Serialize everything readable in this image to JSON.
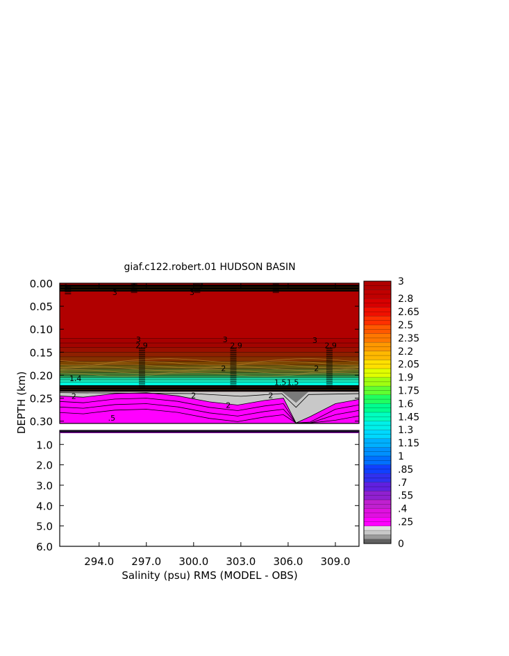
{
  "chart_data": {
    "type": "heatmap",
    "title": "giaf.c122.robert.01 HUDSON BASIN",
    "xlabel": "Salinity (psu) RMS (MODEL - OBS)",
    "ylabel": "DEPTH (km)",
    "x_ticks": [
      "294.0",
      "297.0",
      "300.0",
      "303.0",
      "306.0",
      "309.0"
    ],
    "x_range": [
      291.5,
      310.5
    ],
    "upper_panel": {
      "y_ticks": [
        "0.00",
        "0.05",
        "0.10",
        "0.15",
        "0.20",
        "0.25",
        "0.30"
      ],
      "ylim": [
        0.0,
        0.305
      ]
    },
    "lower_panel": {
      "y_ticks": [
        "1.0",
        "2.0",
        "3.0",
        "4.0",
        "5.0",
        "6.0"
      ],
      "ylim": [
        0.31,
        6.0
      ]
    },
    "colorbar": {
      "labels": [
        "3",
        "2.8",
        "2.65",
        "2.5",
        "2.35",
        "2.2",
        "2.05",
        "1.9",
        "1.75",
        "1.6",
        "1.45",
        "1.3",
        "1.15",
        "1",
        ".85",
        ".7",
        ".55",
        ".4",
        ".25",
        "0"
      ],
      "range": [
        0,
        3
      ]
    },
    "contour_labels": [
      {
        "text": "3",
        "x": 291.9,
        "y": 0.008
      },
      {
        "text": "3",
        "x": 296.2,
        "y": 0.002
      },
      {
        "text": "3",
        "x": 295.0,
        "y": 0.02
      },
      {
        "text": "3",
        "x": 300.5,
        "y": 0.002
      },
      {
        "text": "3",
        "x": 299.9,
        "y": 0.02
      },
      {
        "text": "3",
        "x": 296.5,
        "y": 0.122
      },
      {
        "text": "3",
        "x": 302.0,
        "y": 0.122
      },
      {
        "text": "3",
        "x": 307.7,
        "y": 0.124
      },
      {
        "text": "2.9",
        "x": 296.7,
        "y": 0.135
      },
      {
        "text": "2.9",
        "x": 302.7,
        "y": 0.135
      },
      {
        "text": "2.9",
        "x": 308.7,
        "y": 0.135
      },
      {
        "text": "2",
        "x": 301.9,
        "y": 0.185
      },
      {
        "text": "2",
        "x": 307.8,
        "y": 0.185
      },
      {
        "text": "1.4",
        "x": 292.5,
        "y": 0.207
      },
      {
        "text": "1.5",
        "x": 305.5,
        "y": 0.215
      },
      {
        "text": "1.5",
        "x": 306.3,
        "y": 0.215
      },
      {
        "text": "2",
        "x": 292.4,
        "y": 0.245
      },
      {
        "text": "2",
        "x": 300.0,
        "y": 0.244
      },
      {
        "text": "2",
        "x": 302.2,
        "y": 0.265
      },
      {
        "text": "2",
        "x": 304.9,
        "y": 0.244
      },
      {
        "text": ".5",
        "x": 294.8,
        "y": 0.293
      }
    ]
  }
}
